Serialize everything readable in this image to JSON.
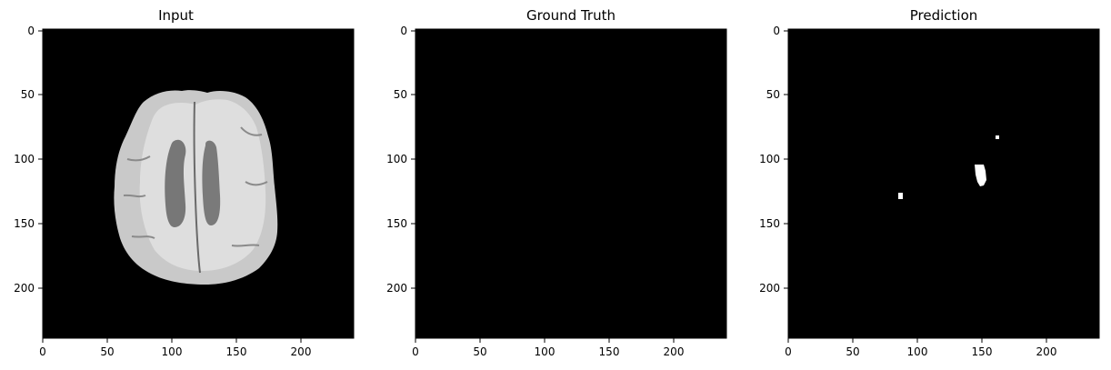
{
  "figure": {
    "panels": [
      {
        "id": "input",
        "title": "Input",
        "image": "brain MRI axial slice, grayscale",
        "xticks": [
          "0",
          "50",
          "100",
          "150",
          "200"
        ],
        "yticks": [
          "0",
          "50",
          "100",
          "150",
          "200"
        ]
      },
      {
        "id": "ground_truth",
        "title": "Ground Truth",
        "image": "empty mask (all black)",
        "xticks": [
          "0",
          "50",
          "100",
          "150",
          "200"
        ],
        "yticks": [
          "0",
          "50",
          "100",
          "150",
          "200"
        ]
      },
      {
        "id": "prediction",
        "title": "Prediction",
        "image": "binary mask with small white blobs",
        "xticks": [
          "0",
          "50",
          "100",
          "150",
          "200"
        ],
        "yticks": [
          "0",
          "50",
          "100",
          "150",
          "200"
        ]
      }
    ]
  },
  "colors": {
    "background": "#000000",
    "foreground": "#ffffff"
  }
}
